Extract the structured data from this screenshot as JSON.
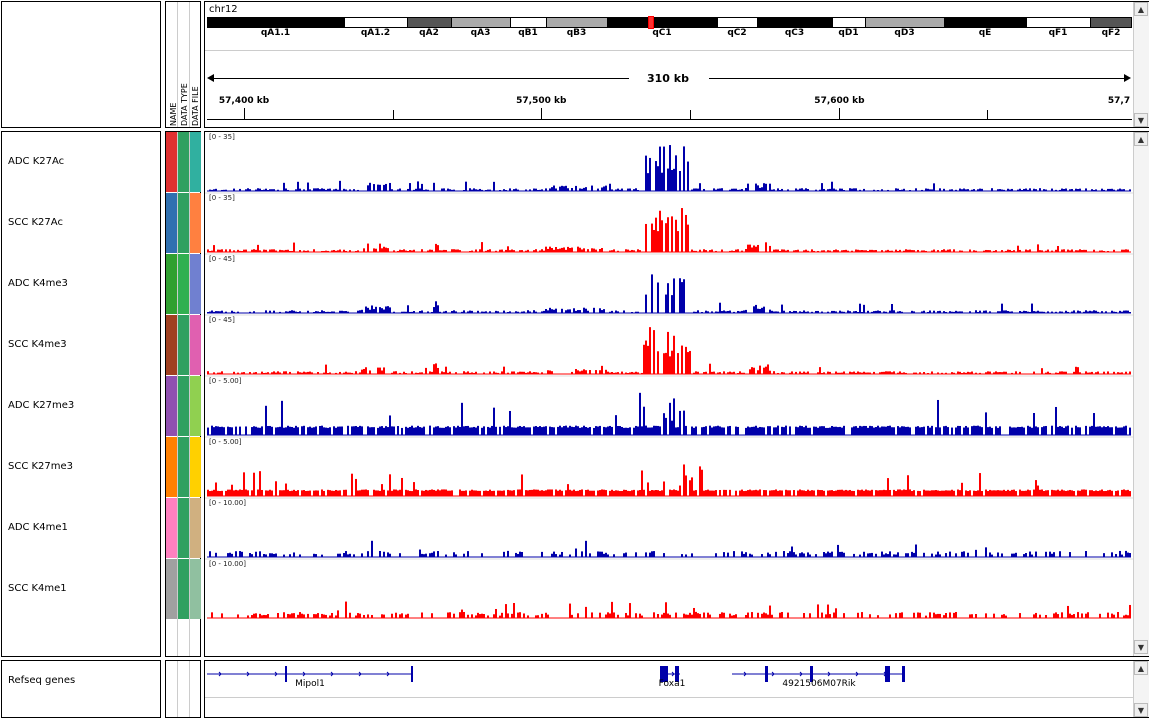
{
  "header": {
    "chromosome": "chr12",
    "bands": [
      {
        "label": "qA1.1",
        "start": 0,
        "end": 137,
        "color": "#000000"
      },
      {
        "label": "qA1.2",
        "start": 137,
        "end": 200,
        "color": "#ffffff"
      },
      {
        "label": "qA2",
        "start": 200,
        "end": 244,
        "color": "#555555"
      },
      {
        "label": "qA3",
        "start": 244,
        "end": 303,
        "color": "#aaaaaa"
      },
      {
        "label": "qB1",
        "start": 303,
        "end": 339,
        "color": "#ffffff"
      },
      {
        "label": "qB3",
        "start": 339,
        "end": 400,
        "color": "#aaaaaa"
      },
      {
        "label": "qC1",
        "start": 400,
        "end": 510,
        "color": "#000000"
      },
      {
        "label": "qC2",
        "start": 510,
        "end": 550,
        "color": "#ffffff"
      },
      {
        "label": "qC3",
        "start": 550,
        "end": 625,
        "color": "#000000"
      },
      {
        "label": "qD1",
        "start": 625,
        "end": 658,
        "color": "#ffffff"
      },
      {
        "label": "qD3",
        "start": 658,
        "end": 737,
        "color": "#aaaaaa"
      },
      {
        "label": "qE",
        "start": 737,
        "end": 819,
        "color": "#000000"
      },
      {
        "label": "qF1",
        "start": 819,
        "end": 883,
        "color": "#ffffff"
      },
      {
        "label": "qF2",
        "start": 883,
        "end": 925,
        "color": "#555555"
      }
    ],
    "span_label": "310 kb",
    "ticks": [
      {
        "label": "57,400 kb",
        "frac": 0.04
      },
      {
        "label": "57,500 kb",
        "frac": 0.361
      },
      {
        "label": "57,600 kb",
        "frac": 0.683
      },
      {
        "label": "57,7",
        "frac": 0.995
      }
    ],
    "attribute_headers": [
      "NAME",
      "DATA TYPE",
      "DATA FILE"
    ]
  },
  "tracks": [
    {
      "name": "ADC K27Ac",
      "range": "[0 - 35]",
      "color": "#0000aa",
      "type": "peak",
      "attr_colors": [
        "#e03030",
        "#30a060",
        "#30b0a0"
      ]
    },
    {
      "name": "SCC K27Ac",
      "range": "[0 - 35]",
      "color": "#ff0000",
      "type": "peak",
      "attr_colors": [
        "#3070b0",
        "#30a060",
        "#ff8040"
      ]
    },
    {
      "name": "ADC K4me3",
      "range": "[0 - 45]",
      "color": "#0000aa",
      "type": "peak",
      "attr_colors": [
        "#30a030",
        "#30b050",
        "#7080d0"
      ]
    },
    {
      "name": "SCC K4me3",
      "range": "[0 - 45]",
      "color": "#ff0000",
      "type": "peak",
      "attr_colors": [
        "#a04020",
        "#30a060",
        "#e060b0"
      ]
    },
    {
      "name": "ADC K27me3",
      "range": "[0 - 5.00]",
      "color": "#0000aa",
      "type": "broad",
      "attr_colors": [
        "#9050b0",
        "#30a060",
        "#90d050"
      ]
    },
    {
      "name": "SCC K27me3",
      "range": "[0 - 5.00]",
      "color": "#ff0000",
      "type": "broad",
      "attr_colors": [
        "#ff8000",
        "#30a060",
        "#ffd000"
      ]
    },
    {
      "name": "ADC K4me1",
      "range": "[0 - 10.00]",
      "color": "#0000aa",
      "type": "sparse",
      "attr_colors": [
        "#ff80c0",
        "#30a060",
        "#d0b080"
      ]
    },
    {
      "name": "SCC K4me1",
      "range": "[0 - 10.00]",
      "color": "#ff0000",
      "type": "sparse",
      "attr_colors": [
        "#a0a0a0",
        "#30a060",
        "#90c0a0"
      ]
    }
  ],
  "genes_track": {
    "name": "Refseq genes",
    "genes": [
      {
        "label": "Mipol1",
        "start": 0,
        "end": 206,
        "exons": [
          [
            78,
            80
          ],
          [
            204,
            206
          ]
        ]
      },
      {
        "label": "Foxa1",
        "start": 453,
        "end": 473,
        "exons": [
          [
            453,
            461
          ],
          [
            468,
            472
          ]
        ]
      },
      {
        "label": "4921506M07Rik",
        "start": 525,
        "end": 698,
        "exons": [
          [
            558,
            561
          ],
          [
            603,
            606
          ],
          [
            678,
            683
          ],
          [
            695,
            698
          ]
        ]
      }
    ]
  },
  "icons": {
    "scroll_up": "triangle-up-icon",
    "scroll_down": "triangle-down-icon"
  }
}
